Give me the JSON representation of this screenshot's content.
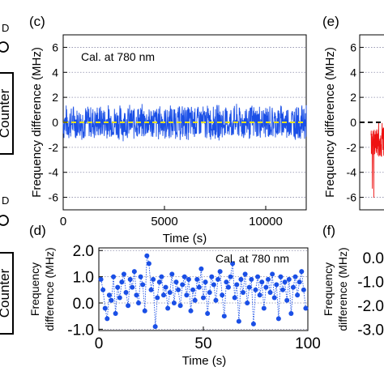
{
  "left_strip": {
    "box_label_top": "Counter",
    "box_label_bottom": "Counter",
    "letter_top": "D",
    "letter_bottom": "D"
  },
  "chart_data": [
    {
      "panel": "(c)",
      "type": "line",
      "series": [
        {
          "name": "",
          "color": "#1a4fe6",
          "description_values": {
            "mean": 0.0,
            "amplitude": 1.4
          }
        },
        {
          "name": "",
          "color": "#e8e21a",
          "dashed": true,
          "values": [
            0,
            0
          ]
        }
      ],
      "annotation": "Cal. at 780 nm",
      "annotation_color": "#1a4fe6",
      "xlabel": "Time (s)",
      "ylabel": "Frequency difference (MHz)",
      "xlim": [
        0,
        12000
      ],
      "ylim": [
        -7,
        7
      ],
      "xticks": [
        0,
        5000,
        10000
      ],
      "yticks": [
        -6,
        -4,
        -2,
        0,
        2,
        4,
        6
      ],
      "grid": true
    },
    {
      "panel": "(d)",
      "type": "scatter",
      "annotation": "Cal. at 780 nm",
      "annotation_color": "#1a4fe6",
      "xlabel": "Time (s)",
      "ylabel_line1": "Frequency",
      "ylabel_line2": "difference (MHz)",
      "xlim": [
        0,
        100
      ],
      "ylim": [
        -1.05,
        2.1
      ],
      "xticks": [
        0,
        50,
        100
      ],
      "yticks": [
        "-1.0",
        "0.0",
        "1.0",
        "2.0"
      ],
      "ytick_values": [
        -1,
        0,
        1,
        2
      ],
      "grid": true,
      "color": "#1a4fe6",
      "x": [
        1,
        2,
        3,
        4,
        5,
        6,
        7,
        8,
        9,
        10,
        11,
        12,
        13,
        14,
        15,
        16,
        17,
        18,
        19,
        20,
        21,
        22,
        23,
        24,
        25,
        26,
        27,
        28,
        29,
        30,
        31,
        32,
        33,
        34,
        35,
        36,
        37,
        38,
        39,
        40,
        41,
        42,
        43,
        44,
        45,
        46,
        47,
        48,
        49,
        50,
        51,
        52,
        53,
        54,
        55,
        56,
        57,
        58,
        59,
        60,
        61,
        62,
        63,
        64,
        65,
        66,
        67,
        68,
        69,
        70,
        71,
        72,
        73,
        74,
        75,
        76,
        77,
        78,
        79,
        80,
        81,
        82,
        83,
        84,
        85,
        86,
        87,
        88,
        89,
        90,
        91,
        92,
        93,
        94,
        95,
        96,
        97,
        98,
        99
      ],
      "y": [
        0.9,
        0.5,
        -0.2,
        -0.6,
        0.3,
        0.1,
        1.0,
        -0.4,
        0.6,
        0.2,
        0.8,
        1.1,
        0.4,
        -0.1,
        0.9,
        0.6,
        1.2,
        0.3,
        0.0,
        1.0,
        0.7,
        -0.3,
        1.8,
        1.5,
        0.5,
        0.9,
        -0.9,
        0.2,
        0.8,
        1.0,
        0.3,
        0.6,
        -0.2,
        0.4,
        1.1,
        0.0,
        0.8,
        0.5,
        -0.1,
        0.7,
        1.0,
        0.3,
        0.9,
        -0.3,
        0.5,
        0.1,
        0.9,
        0.6,
        1.3,
        0.2,
        0.8,
        -0.4,
        0.4,
        1.0,
        0.7,
        0.1,
        0.9,
        1.2,
        0.3,
        -0.5,
        0.8,
        0.6,
        1.0,
        1.5,
        0.2,
        0.7,
        -0.7,
        0.9,
        0.4,
        1.1,
        0.0,
        0.6,
        0.9,
        -0.8,
        0.5,
        1.0,
        0.3,
        0.8,
        -0.2,
        0.6,
        0.9,
        0.4,
        1.1,
        0.2,
        0.7,
        -0.6,
        1.0,
        0.5,
        0.8,
        0.1,
        0.9,
        -0.4,
        0.6,
        1.0,
        0.3,
        0.8,
        1.2,
        0.5,
        -0.2
      ]
    },
    {
      "panel": "(e)",
      "type": "line",
      "series": [
        {
          "name": "",
          "color": "#ee1111"
        },
        {
          "name": "",
          "color": "#000000",
          "dashed": true,
          "values": [
            0,
            0
          ]
        }
      ],
      "ylabel": "Frequency difference (MHz)",
      "ylim": [
        -7,
        7
      ],
      "yticks": [
        -6,
        -4,
        -2,
        0,
        2,
        4,
        6
      ],
      "grid": true
    },
    {
      "panel": "(f)",
      "type": "line",
      "ylabel_line1": "Frequency",
      "ylabel_line2": "difference (MHz)",
      "yticks": [
        "0.0",
        "-1.0",
        "-2.0",
        "-3.0"
      ],
      "ytick_values": [
        0,
        -1,
        -2,
        -3
      ]
    }
  ]
}
